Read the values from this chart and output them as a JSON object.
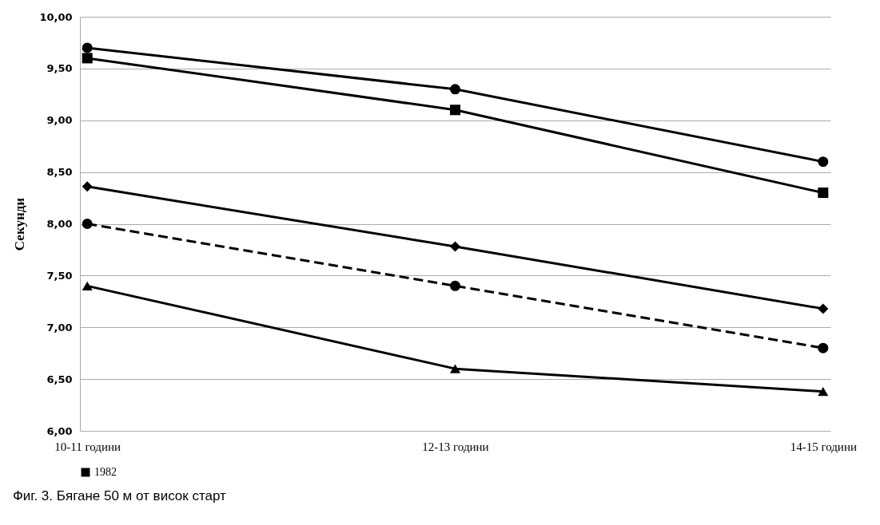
{
  "chart_data": {
    "type": "line",
    "title": "Фиг. 3. Бягане 50 м от висок старт",
    "ylabel": "Секунди",
    "categories": [
      "10-11 години",
      "12-13 години",
      "14-15 години"
    ],
    "series": [
      {
        "color": "#000000",
        "marker": "diamond",
        "values": [
          8.36,
          7.78,
          7.18
        ]
      },
      {
        "color": "#000000",
        "marker": "circle",
        "values": [
          9.7,
          9.3,
          8.6
        ]
      },
      {
        "color": "#000000",
        "marker": "triangle",
        "values": [
          7.4,
          6.6,
          6.38
        ]
      },
      {
        "color": "#000000",
        "marker": "circle",
        "line_style": "dashed",
        "values": [
          8.0,
          7.4,
          6.8
        ]
      },
      {
        "name": "1982",
        "color": "#000000",
        "marker": "square",
        "values": [
          9.6,
          9.1,
          8.3
        ]
      }
    ],
    "ylim": [
      6,
      10
    ],
    "yticks": [
      {
        "value": 6,
        "label": "6,00"
      },
      {
        "value": 6.5,
        "label": "6,50"
      },
      {
        "value": 7,
        "label": "7,00"
      },
      {
        "value": 7.5,
        "label": "7,50"
      },
      {
        "value": 8,
        "label": "8,00"
      },
      {
        "value": 8.5,
        "label": "8,50"
      },
      {
        "value": 9,
        "label": "9,00"
      },
      {
        "value": 9.5,
        "label": "9,50"
      },
      {
        "value": 10,
        "label": "10,00"
      }
    ],
    "grid": "y",
    "legend": "bottom"
  }
}
